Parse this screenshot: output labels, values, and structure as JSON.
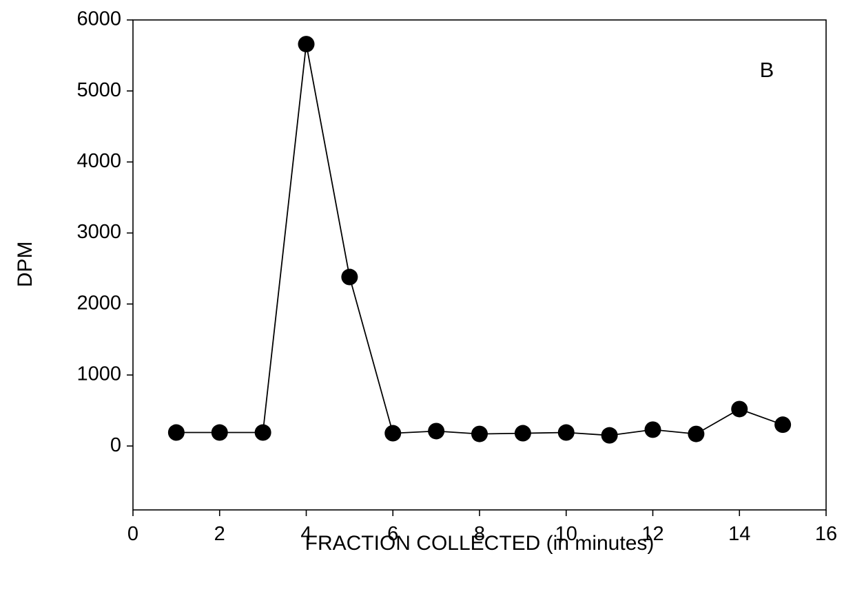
{
  "chart_data": {
    "type": "line",
    "title": "",
    "panel_label": "B",
    "xlabel": "FRACTION COLLECTED (in minutes)",
    "ylabel": "DPM",
    "xlim": [
      0,
      16
    ],
    "ylim": [
      -900,
      6000
    ],
    "x_ticks": [
      0,
      2,
      4,
      6,
      8,
      10,
      12,
      14,
      16
    ],
    "y_ticks": [
      0,
      1000,
      2000,
      3000,
      4000,
      5000,
      6000
    ],
    "grid": false,
    "legend": "none",
    "series": [
      {
        "marker": "filled-circle",
        "color": "#000000",
        "x": [
          1,
          2,
          3,
          4,
          5,
          6,
          7,
          8,
          9,
          10,
          11,
          12,
          13,
          14,
          15
        ],
        "y": [
          190,
          190,
          190,
          5660,
          2380,
          180,
          210,
          170,
          180,
          190,
          150,
          230,
          170,
          520,
          300
        ]
      }
    ]
  }
}
